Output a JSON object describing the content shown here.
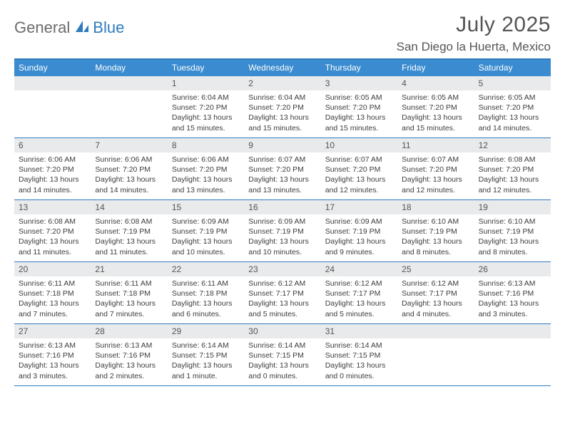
{
  "logo": {
    "part1": "General",
    "part2": "Blue"
  },
  "title": "July 2025",
  "location": "San Diego la Huerta, Mexico",
  "colors": {
    "header_bg": "#3a8bcf",
    "accent": "#2f7bbf",
    "daynum_bg": "#e9eaeb",
    "text_muted": "#555",
    "text_body": "#3d3d3d"
  },
  "dow": [
    "Sunday",
    "Monday",
    "Tuesday",
    "Wednesday",
    "Thursday",
    "Friday",
    "Saturday"
  ],
  "weeks": [
    [
      null,
      null,
      {
        "n": "1",
        "sr": "6:04 AM",
        "ss": "7:20 PM",
        "dl": "13 hours and 15 minutes."
      },
      {
        "n": "2",
        "sr": "6:04 AM",
        "ss": "7:20 PM",
        "dl": "13 hours and 15 minutes."
      },
      {
        "n": "3",
        "sr": "6:05 AM",
        "ss": "7:20 PM",
        "dl": "13 hours and 15 minutes."
      },
      {
        "n": "4",
        "sr": "6:05 AM",
        "ss": "7:20 PM",
        "dl": "13 hours and 15 minutes."
      },
      {
        "n": "5",
        "sr": "6:05 AM",
        "ss": "7:20 PM",
        "dl": "13 hours and 14 minutes."
      }
    ],
    [
      {
        "n": "6",
        "sr": "6:06 AM",
        "ss": "7:20 PM",
        "dl": "13 hours and 14 minutes."
      },
      {
        "n": "7",
        "sr": "6:06 AM",
        "ss": "7:20 PM",
        "dl": "13 hours and 14 minutes."
      },
      {
        "n": "8",
        "sr": "6:06 AM",
        "ss": "7:20 PM",
        "dl": "13 hours and 13 minutes."
      },
      {
        "n": "9",
        "sr": "6:07 AM",
        "ss": "7:20 PM",
        "dl": "13 hours and 13 minutes."
      },
      {
        "n": "10",
        "sr": "6:07 AM",
        "ss": "7:20 PM",
        "dl": "13 hours and 12 minutes."
      },
      {
        "n": "11",
        "sr": "6:07 AM",
        "ss": "7:20 PM",
        "dl": "13 hours and 12 minutes."
      },
      {
        "n": "12",
        "sr": "6:08 AM",
        "ss": "7:20 PM",
        "dl": "13 hours and 12 minutes."
      }
    ],
    [
      {
        "n": "13",
        "sr": "6:08 AM",
        "ss": "7:20 PM",
        "dl": "13 hours and 11 minutes."
      },
      {
        "n": "14",
        "sr": "6:08 AM",
        "ss": "7:19 PM",
        "dl": "13 hours and 11 minutes."
      },
      {
        "n": "15",
        "sr": "6:09 AM",
        "ss": "7:19 PM",
        "dl": "13 hours and 10 minutes."
      },
      {
        "n": "16",
        "sr": "6:09 AM",
        "ss": "7:19 PM",
        "dl": "13 hours and 10 minutes."
      },
      {
        "n": "17",
        "sr": "6:09 AM",
        "ss": "7:19 PM",
        "dl": "13 hours and 9 minutes."
      },
      {
        "n": "18",
        "sr": "6:10 AM",
        "ss": "7:19 PM",
        "dl": "13 hours and 8 minutes."
      },
      {
        "n": "19",
        "sr": "6:10 AM",
        "ss": "7:19 PM",
        "dl": "13 hours and 8 minutes."
      }
    ],
    [
      {
        "n": "20",
        "sr": "6:11 AM",
        "ss": "7:18 PM",
        "dl": "13 hours and 7 minutes."
      },
      {
        "n": "21",
        "sr": "6:11 AM",
        "ss": "7:18 PM",
        "dl": "13 hours and 7 minutes."
      },
      {
        "n": "22",
        "sr": "6:11 AM",
        "ss": "7:18 PM",
        "dl": "13 hours and 6 minutes."
      },
      {
        "n": "23",
        "sr": "6:12 AM",
        "ss": "7:17 PM",
        "dl": "13 hours and 5 minutes."
      },
      {
        "n": "24",
        "sr": "6:12 AM",
        "ss": "7:17 PM",
        "dl": "13 hours and 5 minutes."
      },
      {
        "n": "25",
        "sr": "6:12 AM",
        "ss": "7:17 PM",
        "dl": "13 hours and 4 minutes."
      },
      {
        "n": "26",
        "sr": "6:13 AM",
        "ss": "7:16 PM",
        "dl": "13 hours and 3 minutes."
      }
    ],
    [
      {
        "n": "27",
        "sr": "6:13 AM",
        "ss": "7:16 PM",
        "dl": "13 hours and 3 minutes."
      },
      {
        "n": "28",
        "sr": "6:13 AM",
        "ss": "7:16 PM",
        "dl": "13 hours and 2 minutes."
      },
      {
        "n": "29",
        "sr": "6:14 AM",
        "ss": "7:15 PM",
        "dl": "13 hours and 1 minute."
      },
      {
        "n": "30",
        "sr": "6:14 AM",
        "ss": "7:15 PM",
        "dl": "13 hours and 0 minutes."
      },
      {
        "n": "31",
        "sr": "6:14 AM",
        "ss": "7:15 PM",
        "dl": "13 hours and 0 minutes."
      },
      null,
      null
    ]
  ],
  "labels": {
    "sunrise": "Sunrise:",
    "sunset": "Sunset:",
    "daylight": "Daylight:"
  }
}
